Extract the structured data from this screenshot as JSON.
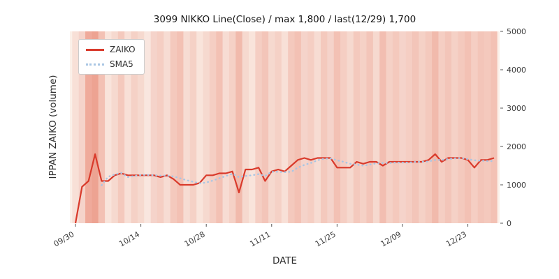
{
  "chart_data": {
    "type": "line",
    "title": "3099 NIKKO Line(Close) / max 1,800 / last(12/29) 1,700",
    "xlabel": "DATE",
    "ylabel": "IPPAN ZAIKO (volume)",
    "ylim": [
      0,
      5000
    ],
    "yticks": [
      0,
      1000,
      2000,
      3000,
      4000,
      5000
    ],
    "xtick_labels": [
      "09/30",
      "10/14",
      "10/28",
      "11/11",
      "11/25",
      "12/09",
      "12/23"
    ],
    "xtick_indices": [
      0,
      10,
      20,
      30,
      40,
      50,
      60
    ],
    "grid": false,
    "legend_position": "upper left",
    "plot_bg": "#fbf0e9",
    "max_value": 1800,
    "last_value": 1700,
    "series": [
      {
        "name": "ZAIKO",
        "color": "#d93a2b",
        "style": "solid",
        "values": [
          0,
          950,
          1100,
          1800,
          1100,
          1100,
          1250,
          1300,
          1250,
          1250,
          1250,
          1250,
          1250,
          1200,
          1250,
          1150,
          1000,
          1000,
          1000,
          1050,
          1250,
          1250,
          1300,
          1300,
          1350,
          800,
          1400,
          1400,
          1450,
          1100,
          1350,
          1400,
          1350,
          1500,
          1650,
          1700,
          1650,
          1700,
          1700,
          1700,
          1450,
          1450,
          1450,
          1600,
          1550,
          1600,
          1600,
          1500,
          1600,
          1600,
          1600,
          1600,
          1600,
          1600,
          1650,
          1800,
          1600,
          1700,
          1700,
          1700,
          1650,
          1450,
          1650,
          1650,
          1700
        ]
      },
      {
        "name": "SMA5",
        "color": "#a9c6e4",
        "style": "dotted",
        "derived_from": "ZAIKO",
        "window": 5
      }
    ],
    "background_stripes": {
      "color": "#e0553c",
      "alphas": [
        0.1,
        0.18,
        0.45,
        0.5,
        0.3,
        0.08,
        0.15,
        0.25,
        0.1,
        0.2,
        0.15,
        0.06,
        0.18,
        0.22,
        0.12,
        0.25,
        0.3,
        0.12,
        0.2,
        0.08,
        0.15,
        0.22,
        0.3,
        0.12,
        0.2,
        0.35,
        0.15,
        0.08,
        0.22,
        0.28,
        0.15,
        0.2,
        0.1,
        0.25,
        0.3,
        0.18,
        0.22,
        0.12,
        0.25,
        0.18,
        0.3,
        0.22,
        0.15,
        0.25,
        0.2,
        0.28,
        0.15,
        0.32,
        0.2,
        0.25,
        0.18,
        0.22,
        0.28,
        0.2,
        0.25,
        0.35,
        0.22,
        0.28,
        0.2,
        0.25,
        0.3,
        0.22,
        0.28,
        0.25,
        0.3
      ]
    }
  },
  "legend": {
    "zaiko_label": "ZAIKO",
    "sma5_label": "SMA5"
  }
}
